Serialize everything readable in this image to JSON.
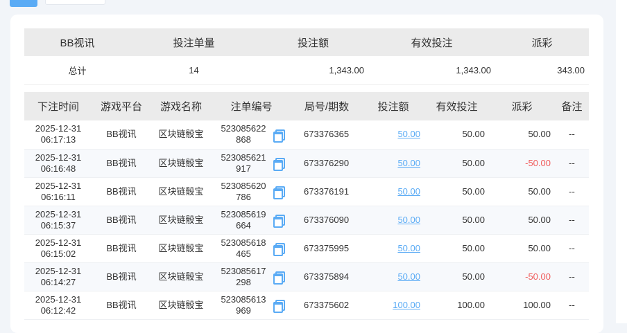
{
  "summary": {
    "headers": [
      "BB视讯",
      "投注单量",
      "投注额",
      "有效投注",
      "派彩"
    ],
    "row": [
      "总计",
      "14",
      "1,343.00",
      "1,343.00",
      "343.00"
    ]
  },
  "details": {
    "headers": [
      "下注时间",
      "游戏平台",
      "游戏名称",
      "注单编号",
      "局号/期数",
      "投注额",
      "有效投注",
      "派彩",
      "备注"
    ],
    "accent": "#5aabf5",
    "negative_color": "#f05a5a",
    "rows": [
      {
        "date": "2025-12-31",
        "time": "06:17:13",
        "platform": "BB视讯",
        "game": "区块链骰宝",
        "id1": "523085622",
        "id2": "868",
        "round": "673376365",
        "bet": "50.00",
        "valid": "50.00",
        "payout": "50.00",
        "note": "--"
      },
      {
        "date": "2025-12-31",
        "time": "06:16:48",
        "platform": "BB视讯",
        "game": "区块链骰宝",
        "id1": "523085621",
        "id2": "917",
        "round": "673376290",
        "bet": "50.00",
        "valid": "50.00",
        "payout": "-50.00",
        "note": "--"
      },
      {
        "date": "2025-12-31",
        "time": "06:16:11",
        "platform": "BB视讯",
        "game": "区块链骰宝",
        "id1": "523085620",
        "id2": "786",
        "round": "673376191",
        "bet": "50.00",
        "valid": "50.00",
        "payout": "50.00",
        "note": "--"
      },
      {
        "date": "2025-12-31",
        "time": "06:15:37",
        "platform": "BB视讯",
        "game": "区块链骰宝",
        "id1": "523085619",
        "id2": "664",
        "round": "673376090",
        "bet": "50.00",
        "valid": "50.00",
        "payout": "50.00",
        "note": "--"
      },
      {
        "date": "2025-12-31",
        "time": "06:15:02",
        "platform": "BB视讯",
        "game": "区块链骰宝",
        "id1": "523085618",
        "id2": "465",
        "round": "673375995",
        "bet": "50.00",
        "valid": "50.00",
        "payout": "50.00",
        "note": "--"
      },
      {
        "date": "2025-12-31",
        "time": "06:14:27",
        "platform": "BB视讯",
        "game": "区块链骰宝",
        "id1": "523085617",
        "id2": "298",
        "round": "673375894",
        "bet": "50.00",
        "valid": "50.00",
        "payout": "-50.00",
        "note": "--"
      },
      {
        "date": "2025-12-31",
        "time": "06:12:42",
        "platform": "BB视讯",
        "game": "区块链骰宝",
        "id1": "523085613",
        "id2": "969",
        "round": "673375602",
        "bet": "100.00",
        "valid": "100.00",
        "payout": "100.00",
        "note": "--"
      }
    ]
  }
}
